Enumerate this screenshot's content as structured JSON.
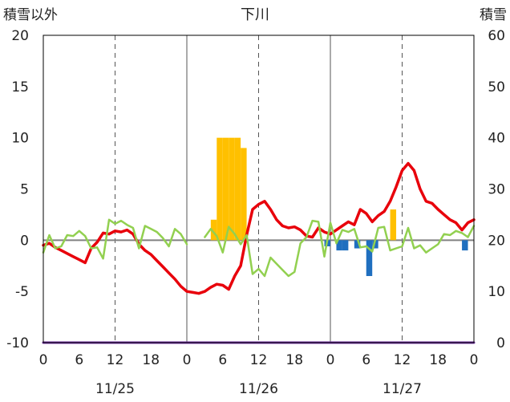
{
  "chart_data": {
    "type": "line",
    "title": "下川",
    "left_axis_label": "積雪以外",
    "right_axis_label": "積雪",
    "left_ylim": [
      -10,
      20
    ],
    "right_ylim": [
      0,
      60
    ],
    "left_ticks": [
      "-10",
      "-5",
      "0",
      "5",
      "10",
      "15",
      "20"
    ],
    "right_ticks": [
      "0",
      "10",
      "20",
      "30",
      "40",
      "50",
      "60"
    ],
    "x_range_hours": [
      0,
      72
    ],
    "x_ticks": [
      "0",
      "6",
      "12",
      "18",
      "0",
      "6",
      "12",
      "18",
      "0",
      "6",
      "12",
      "18",
      "0"
    ],
    "date_labels": [
      "11/25",
      "11/26",
      "11/27"
    ],
    "grid": "dashed vertical at 12h, solid at day boundaries",
    "colors": {
      "temperature": "#e8000b",
      "wind": "#92d050",
      "precip_positive": "#ffc000",
      "precip_negative": "#1f6fbf",
      "snow_depth": "#7030a0",
      "zero_line": "#808080"
    },
    "series": [
      {
        "key": "temperature",
        "axis": "left",
        "x": [
          0,
          1,
          2,
          3,
          4,
          5,
          6,
          7,
          8,
          9,
          10,
          11,
          12,
          13,
          14,
          15,
          16,
          17,
          18,
          19,
          20,
          21,
          22,
          23,
          24,
          25,
          26,
          27,
          28,
          29,
          30,
          31,
          32,
          33,
          34,
          35,
          36,
          37,
          38,
          39,
          40,
          41,
          42,
          43,
          44,
          45,
          46,
          47,
          48,
          49,
          50,
          51,
          52,
          53,
          54,
          55,
          56,
          57,
          58,
          59,
          60,
          61,
          62,
          63,
          64,
          65,
          66,
          67,
          68,
          69,
          70,
          71,
          72
        ],
        "y": [
          -0.5,
          -0.3,
          -0.7,
          -1.0,
          -1.3,
          -1.6,
          -1.9,
          -2.2,
          -0.8,
          -0.2,
          0.7,
          0.6,
          0.9,
          0.8,
          1.0,
          0.6,
          -0.4,
          -1.0,
          -1.4,
          -2.0,
          -2.6,
          -3.2,
          -3.8,
          -4.5,
          -5.0,
          -5.1,
          -5.2,
          -5.0,
          -4.6,
          -4.3,
          -4.4,
          -4.8,
          -3.5,
          -2.5,
          0.5,
          3.0,
          3.5,
          3.8,
          3.0,
          2.0,
          1.4,
          1.2,
          1.3,
          1.0,
          0.4,
          0.3,
          1.2,
          0.8,
          0.6,
          1.0,
          1.4,
          1.8,
          1.5,
          3.0,
          2.6,
          1.8,
          2.4,
          2.8,
          3.8,
          5.2,
          6.8,
          7.5,
          6.8,
          5.0,
          3.8,
          3.6,
          3.0,
          2.5,
          2.0,
          1.7,
          1.0,
          1.7,
          2.0
        ]
      },
      {
        "key": "wind",
        "axis": "left",
        "x": [
          0,
          1,
          2,
          3,
          4,
          5,
          6,
          7,
          8,
          9,
          10,
          11,
          12,
          13,
          14,
          15,
          16,
          17,
          18,
          19,
          20,
          21,
          22,
          23,
          24,
          null,
          27,
          28,
          29,
          30,
          31,
          32,
          33,
          34,
          35,
          36,
          37,
          38,
          39,
          40,
          41,
          42,
          43,
          44,
          45,
          46,
          47,
          48,
          49,
          50,
          51,
          52,
          53,
          54,
          55,
          56,
          57,
          58,
          59,
          60,
          61,
          62,
          63,
          64,
          65,
          66,
          67,
          68,
          69,
          70,
          71,
          72
        ],
        "y": [
          -1.2,
          0.5,
          -0.8,
          -0.6,
          0.5,
          0.4,
          0.9,
          0.4,
          -0.8,
          -0.7,
          -1.8,
          2.0,
          1.6,
          1.9,
          1.5,
          1.2,
          -0.8,
          1.4,
          1.1,
          0.8,
          0.2,
          -0.6,
          1.1,
          0.6,
          -0.4,
          null,
          0.3,
          1.1,
          0.4,
          -1.2,
          1.3,
          0.6,
          -0.4,
          0.5,
          -3.3,
          -2.8,
          -3.5,
          -1.7,
          -2.3,
          -2.9,
          -3.5,
          -3.1,
          -0.3,
          0.3,
          1.9,
          1.8,
          -1.6,
          1.7,
          -0.3,
          1.0,
          0.8,
          1.1,
          -0.7,
          -0.6,
          -1.1,
          1.2,
          1.3,
          -1.0,
          -0.8,
          -0.6,
          1.2,
          -0.8,
          -0.5,
          -1.2,
          -0.8,
          -0.4,
          0.6,
          0.5,
          0.9,
          0.7,
          0.3,
          1.4
        ]
      },
      {
        "key": "snow_depth",
        "axis": "right",
        "x": [
          0,
          72
        ],
        "y": [
          0,
          0
        ]
      }
    ],
    "precip_bars": {
      "axis": "left",
      "width_hours": 1,
      "bars": [
        {
          "x": 28.5,
          "v": 2.0,
          "c": "precip_positive"
        },
        {
          "x": 29.5,
          "v": 10.0,
          "c": "precip_positive"
        },
        {
          "x": 30.5,
          "v": 10.0,
          "c": "precip_positive"
        },
        {
          "x": 31.5,
          "v": 10.0,
          "c": "precip_positive"
        },
        {
          "x": 32.5,
          "v": 10.0,
          "c": "precip_positive"
        },
        {
          "x": 33.5,
          "v": 9.0,
          "c": "precip_positive"
        },
        {
          "x": 47.5,
          "v": -0.6,
          "c": "precip_negative"
        },
        {
          "x": 49.5,
          "v": -1.0,
          "c": "precip_negative"
        },
        {
          "x": 50.5,
          "v": -1.0,
          "c": "precip_negative"
        },
        {
          "x": 52.5,
          "v": -0.8,
          "c": "precip_negative"
        },
        {
          "x": 54.5,
          "v": -3.5,
          "c": "precip_negative"
        },
        {
          "x": 55.5,
          "v": -0.8,
          "c": "precip_negative"
        },
        {
          "x": 58.5,
          "v": 3.0,
          "c": "precip_positive"
        },
        {
          "x": 70.5,
          "v": -1.0,
          "c": "precip_negative"
        }
      ]
    }
  }
}
